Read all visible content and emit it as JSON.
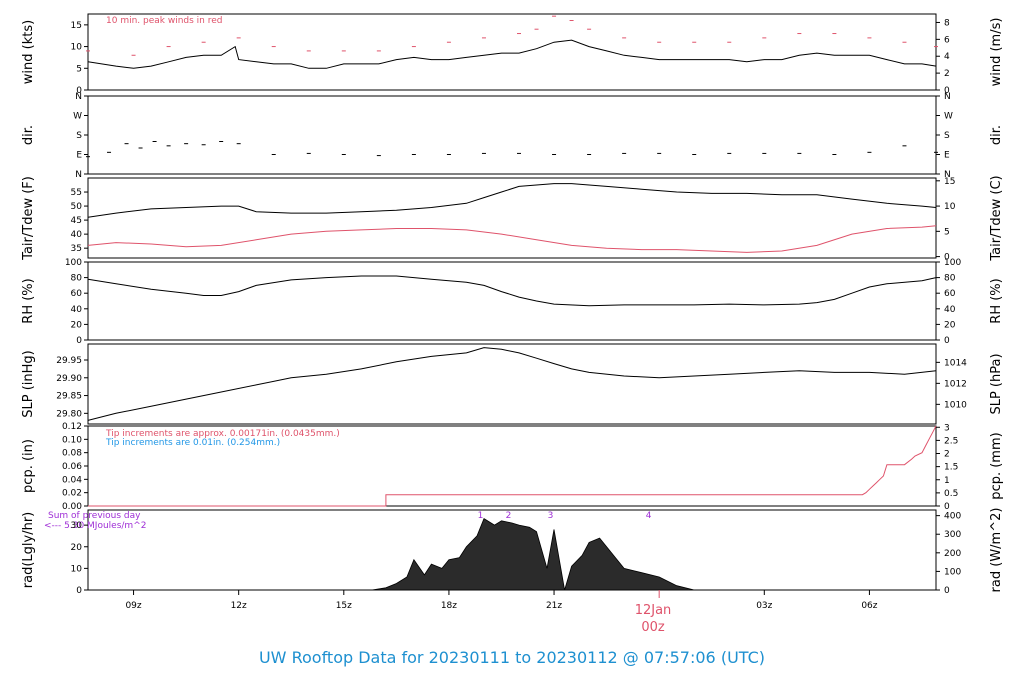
{
  "footer": {
    "title": "UW Rooftop Data for 20230111  to  20230112 @ 07:57:06  (UTC)"
  },
  "colors": {
    "line": "#000000",
    "red": "#df536b",
    "blue": "#2297e6",
    "purple": "#9f2fd6",
    "footer": "#1e90d0"
  },
  "chart_data": [
    {
      "type": "line",
      "id": "wind",
      "ylabel": "wind (kts)",
      "ylabel_right": "wind (m/s)",
      "ylim": [
        0,
        17.5
      ],
      "yticks": [
        0,
        5,
        10,
        15
      ],
      "right_ylim": [
        0,
        9
      ],
      "right_yticks": [
        0,
        2,
        4,
        6,
        8
      ],
      "annotation": "10 min. peak winds in red",
      "series": [
        {
          "role": "wind speed",
          "x_hours": [
            7.7,
            8.5,
            9.0,
            9.5,
            10.0,
            10.5,
            11.0,
            11.5,
            11.9,
            12.0,
            12.5,
            13.0,
            13.5,
            14.0,
            14.5,
            15.0,
            15.5,
            16.0,
            16.5,
            17.0,
            17.5,
            18.0,
            18.5,
            19.0,
            19.5,
            20.0,
            20.5,
            21.0,
            21.5,
            22.0,
            22.5,
            23.0,
            23.5,
            24.0,
            24.5,
            25.0,
            25.5,
            26.0,
            26.5,
            27.0,
            27.5,
            28.0,
            28.5,
            29.0,
            29.5,
            30.0,
            30.5,
            31.0,
            31.5,
            31.9
          ],
          "y": [
            6.5,
            5.5,
            5.0,
            5.5,
            6.5,
            7.5,
            8.0,
            8.0,
            10.0,
            7.0,
            6.5,
            6.0,
            6.0,
            5.0,
            5.0,
            6.0,
            6.0,
            6.0,
            7.0,
            7.5,
            7.0,
            7.0,
            7.5,
            8.0,
            8.5,
            8.5,
            9.5,
            11.0,
            11.5,
            10.0,
            9.0,
            8.0,
            7.5,
            7.0,
            7.0,
            7.0,
            7.0,
            7.0,
            6.5,
            7.0,
            7.0,
            8.0,
            8.5,
            8.0,
            8.0,
            8.0,
            7.0,
            6.0,
            6.0,
            5.5
          ]
        },
        {
          "role": "10 min. peak winds",
          "x_hours": [
            7.7,
            9.0,
            10.0,
            11.0,
            12.0,
            13.0,
            14.0,
            15.0,
            16.0,
            17.0,
            18.0,
            19.0,
            20.0,
            20.5,
            21.0,
            21.5,
            22.0,
            23.0,
            24.0,
            25.0,
            26.0,
            27.0,
            28.0,
            29.0,
            30.0,
            31.0,
            31.9
          ],
          "y": [
            9,
            8,
            10,
            11,
            12,
            10,
            9,
            9,
            9,
            10,
            11,
            12,
            13,
            14,
            17,
            16,
            14,
            12,
            11,
            11,
            11,
            12,
            13,
            13,
            12,
            11,
            10
          ]
        }
      ]
    },
    {
      "type": "scatter",
      "id": "dir",
      "ylabel": "dir.",
      "ylabel_right": "dir.",
      "yticks": [
        "N",
        "E",
        "S",
        "W",
        "N"
      ],
      "ylim_deg": [
        0,
        360
      ],
      "x_hours": [
        7.7,
        8.3,
        8.8,
        9.2,
        9.6,
        10.0,
        10.5,
        11.0,
        11.5,
        12.0,
        13.0,
        14.0,
        15.0,
        16.0,
        17.0,
        18.0,
        19.0,
        20.0,
        21.0,
        22.0,
        23.0,
        24.0,
        25.0,
        26.0,
        27.0,
        28.0,
        29.0,
        30.0,
        31.0,
        31.9
      ],
      "y_deg": [
        80,
        100,
        140,
        120,
        150,
        130,
        140,
        135,
        150,
        140,
        90,
        95,
        90,
        85,
        90,
        90,
        95,
        95,
        90,
        90,
        95,
        95,
        90,
        95,
        95,
        95,
        90,
        100,
        130,
        100
      ]
    },
    {
      "type": "line",
      "id": "temp",
      "ylabel": "Tair/Tdew (F)",
      "ylabel_right": "Tair/Tdew (C)",
      "ylim": [
        31.5,
        60
      ],
      "yticks": [
        35,
        40,
        45,
        50,
        55
      ],
      "right_ylim": [
        0,
        15
      ],
      "right_yticks": [
        0,
        5,
        10,
        15
      ],
      "series": [
        {
          "role": "air temperature",
          "x_hours": [
            7.7,
            8.5,
            9.5,
            10.5,
            11.5,
            12.0,
            12.5,
            13.5,
            14.5,
            15.5,
            16.5,
            17.5,
            18.5,
            19.0,
            19.5,
            20.0,
            20.5,
            21.0,
            21.5,
            22.5,
            23.5,
            24.5,
            25.5,
            26.5,
            27.5,
            28.5,
            29.5,
            30.5,
            31.5,
            31.9
          ],
          "y": [
            46,
            47.5,
            49,
            49.5,
            50,
            50,
            48,
            47.5,
            47.5,
            48,
            48.5,
            49.5,
            51,
            53,
            55,
            57,
            57.5,
            58,
            58,
            57,
            56,
            55,
            54.5,
            54.5,
            54,
            54,
            52.5,
            51,
            50,
            49.5
          ]
        },
        {
          "role": "dew point",
          "x_hours": [
            7.7,
            8.5,
            9.5,
            10.5,
            11.5,
            12.5,
            13.5,
            14.5,
            15.5,
            16.5,
            17.5,
            18.5,
            19.5,
            20.5,
            21.5,
            22.5,
            23.5,
            24.5,
            25.5,
            26.5,
            27.5,
            28.5,
            29.5,
            30.5,
            31.5,
            31.9
          ],
          "y": [
            36,
            37,
            36.5,
            35.5,
            36,
            38,
            40,
            41,
            41.5,
            42,
            42,
            41.5,
            40,
            38,
            36,
            35,
            34.5,
            34.5,
            34,
            33.5,
            34,
            36,
            40,
            42,
            42.5,
            43
          ]
        }
      ]
    },
    {
      "type": "line",
      "id": "rh",
      "ylabel": "RH (%)",
      "ylabel_right": "RH (%)",
      "ylim": [
        0,
        100
      ],
      "yticks": [
        0,
        20,
        40,
        60,
        80,
        100
      ],
      "x_hours": [
        7.7,
        8.5,
        9.5,
        10.5,
        11.0,
        11.5,
        12.0,
        12.5,
        13.5,
        14.5,
        15.5,
        16.5,
        17.5,
        18.5,
        19.0,
        19.5,
        20.0,
        20.5,
        21.0,
        22.0,
        23.0,
        24.0,
        25.0,
        26.0,
        27.0,
        28.0,
        28.5,
        29.0,
        29.5,
        30.0,
        30.5,
        31.5,
        31.9
      ],
      "y": [
        78,
        72,
        65,
        60,
        57,
        57,
        62,
        70,
        77,
        80,
        82,
        82,
        78,
        74,
        70,
        62,
        55,
        50,
        46,
        44,
        45,
        45,
        45,
        46,
        45,
        46,
        48,
        52,
        60,
        68,
        72,
        76,
        80
      ]
    },
    {
      "type": "line",
      "id": "slp",
      "ylabel": "SLP (inHg)",
      "ylabel_right": "SLP (hPa)",
      "ylim": [
        29.77,
        29.995
      ],
      "yticks": [
        29.8,
        29.85,
        29.9,
        29.95
      ],
      "right_yticks": [
        1010,
        1012,
        1014
      ],
      "x_hours": [
        7.7,
        8.5,
        9.5,
        10.5,
        11.5,
        12.5,
        13.5,
        14.5,
        15.5,
        16.5,
        17.5,
        18.5,
        19.0,
        19.5,
        20.0,
        20.5,
        21.0,
        21.5,
        22.0,
        23.0,
        24.0,
        25.0,
        26.0,
        27.0,
        28.0,
        29.0,
        30.0,
        31.0,
        31.9
      ],
      "y": [
        29.78,
        29.8,
        29.82,
        29.84,
        29.86,
        29.88,
        29.9,
        29.91,
        29.925,
        29.945,
        29.96,
        29.97,
        29.985,
        29.98,
        29.97,
        29.955,
        29.94,
        29.925,
        29.915,
        29.905,
        29.9,
        29.905,
        29.91,
        29.915,
        29.92,
        29.915,
        29.915,
        29.91,
        29.92
      ]
    },
    {
      "type": "line",
      "id": "pcp",
      "ylabel": "pcp. (in)",
      "ylabel_right": "pcp. (mm)",
      "ylim": [
        0,
        0.12
      ],
      "yticks": [
        0.0,
        0.02,
        0.04,
        0.06,
        0.08,
        0.1,
        0.12
      ],
      "right_yticks": [
        0,
        0.5,
        1,
        1.5,
        2,
        2.5,
        3
      ],
      "notes": [
        "Tip increments are approx. 0.00171in. (0.0435mm.)",
        "Tip increments are 0.01in. (0.254mm.)"
      ],
      "x_hours": [
        7.7,
        16.2,
        16.2,
        29.8,
        29.9,
        30.0,
        30.1,
        30.2,
        30.3,
        30.4,
        30.5,
        31.0,
        31.2,
        31.3,
        31.5,
        31.6,
        31.7,
        31.8,
        31.9
      ],
      "y": [
        0,
        0,
        0.017,
        0.017,
        0.02,
        0.025,
        0.03,
        0.035,
        0.04,
        0.045,
        0.062,
        0.062,
        0.07,
        0.075,
        0.08,
        0.09,
        0.1,
        0.11,
        0.12
      ]
    },
    {
      "type": "area",
      "id": "rad",
      "ylabel": "rad(Lgly/hr)",
      "ylabel_right": "rad (W/m^2)",
      "ylim": [
        0,
        37
      ],
      "yticks": [
        0,
        10,
        20,
        30
      ],
      "right_yticks": [
        0,
        100,
        200,
        300,
        400
      ],
      "notes": [
        "Sum of previous day",
        "<--- 5.30 MJoules/m^2"
      ],
      "markers": [
        {
          "label": "1",
          "x_hours": 18.9
        },
        {
          "label": "2",
          "x_hours": 19.7
        },
        {
          "label": "3",
          "x_hours": 20.9
        },
        {
          "label": "4",
          "x_hours": 23.7
        }
      ],
      "x_hours": [
        15.8,
        16.2,
        16.5,
        16.8,
        17.0,
        17.3,
        17.5,
        17.8,
        18.0,
        18.3,
        18.5,
        18.8,
        19.0,
        19.3,
        19.5,
        19.8,
        20.0,
        20.3,
        20.5,
        20.8,
        21.0,
        21.3,
        21.5,
        21.8,
        22.0,
        22.3,
        22.5,
        22.8,
        23.0,
        23.5,
        24.0,
        24.5,
        25.0
      ],
      "y": [
        0,
        1,
        3,
        6,
        14,
        7,
        12,
        10,
        14,
        15,
        20,
        25,
        33,
        30,
        32,
        31,
        30,
        29,
        27,
        10,
        28,
        0,
        11,
        16,
        22,
        24,
        20,
        14,
        10,
        8,
        6,
        2,
        0
      ]
    }
  ],
  "x_axis": {
    "tick_labels": [
      "09z",
      "12z",
      "15z",
      "18z",
      "21z",
      "03z",
      "06z"
    ],
    "tick_hours": [
      9,
      12,
      15,
      18,
      21,
      27,
      30
    ],
    "date_label": "12Jan",
    "date_sub_label": "00z",
    "date_hour": 24
  }
}
